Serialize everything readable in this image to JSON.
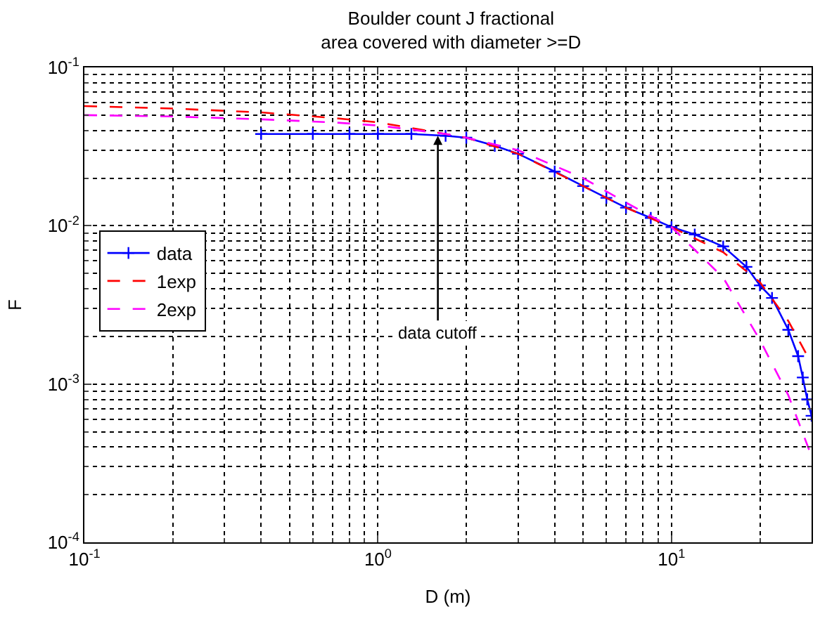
{
  "chart_data": {
    "type": "line",
    "title": "Boulder count J fractional\narea covered with diameter >=D",
    "xlabel": "D (m)",
    "ylabel": "F",
    "log": "xy",
    "grid": true,
    "legend": "left",
    "xlim": [
      0.1,
      30
    ],
    "ylim": [
      0.0001,
      0.1
    ],
    "xticks": [
      {
        "value": 0.1,
        "label": "10$^{-1}$"
      },
      {
        "value": 1,
        "label": "10$^{0}$"
      },
      {
        "value": 10,
        "label": "10$^{1}$"
      }
    ],
    "yticks": [
      {
        "value": 0.0001,
        "label": "10$^{-4}$"
      },
      {
        "value": 0.001,
        "label": "10$^{-3}$"
      },
      {
        "value": 0.01,
        "label": "10$^{-2}$"
      },
      {
        "value": 0.1,
        "label": "10$^{-1}$"
      }
    ],
    "series": [
      {
        "name": "data",
        "color": "#0000ff",
        "marker": "cross",
        "line_style": "solid",
        "x": [
          0.4,
          0.6,
          0.8,
          1.0,
          1.3,
          1.7,
          2.0,
          2.5,
          3.0,
          4.0,
          5.0,
          6.0,
          7.0,
          8.5,
          10,
          12,
          15,
          18,
          20,
          22,
          25,
          27,
          28,
          29,
          30
        ],
        "values": [
          0.038,
          0.038,
          0.038,
          0.038,
          0.038,
          0.037,
          0.036,
          0.032,
          0.0285,
          0.022,
          0.0178,
          0.015,
          0.013,
          0.0112,
          0.0098,
          0.0088,
          0.0074,
          0.0055,
          0.0042,
          0.0035,
          0.0022,
          0.0015,
          0.0011,
          0.0008,
          0.00063
        ]
      },
      {
        "name": "1exp",
        "color": "#ff0000",
        "marker": "none",
        "line_style": "dashed",
        "x": [
          0.1,
          0.2,
          0.4,
          0.7,
          1.0,
          1.7,
          2.0,
          3.0,
          5.0,
          7.0,
          10,
          15,
          20,
          25,
          30
        ],
        "values": [
          0.057,
          0.055,
          0.052,
          0.048,
          0.045,
          0.038,
          0.036,
          0.0285,
          0.0178,
          0.013,
          0.0098,
          0.0068,
          0.0044,
          0.0025,
          0.00135
        ]
      },
      {
        "name": "2exp",
        "color": "#ff00ff",
        "marker": "none",
        "line_style": "dashed",
        "x": [
          0.1,
          0.2,
          0.4,
          0.7,
          1.0,
          1.7,
          2.0,
          3.0,
          5.0,
          7.0,
          10,
          15,
          20,
          25,
          30
        ],
        "values": [
          0.05,
          0.049,
          0.047,
          0.045,
          0.043,
          0.038,
          0.036,
          0.03,
          0.02,
          0.014,
          0.0098,
          0.0047,
          0.0019,
          0.00085,
          0.00035
        ]
      }
    ],
    "annotations": [
      {
        "text": "data cutoff",
        "x": 1.6,
        "y": 0.037
      }
    ]
  }
}
